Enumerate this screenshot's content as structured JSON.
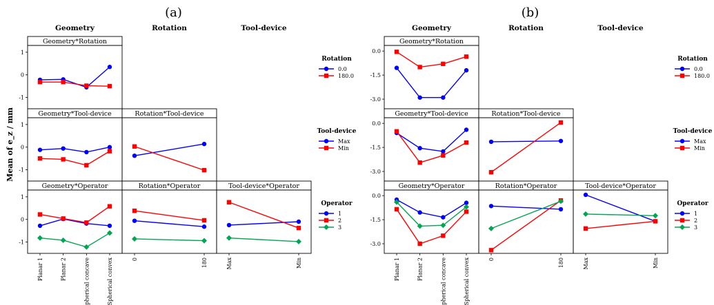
{
  "chart_data": [
    {
      "label": "(a)",
      "type": "interaction-line-matrix",
      "ylabel": "Mean of e_z / mm",
      "factors": [
        "Geometry",
        "Rotation",
        "Tool-device"
      ],
      "column_headers": [
        "Geometry",
        "Rotation",
        "Tool-device"
      ],
      "ylim": [
        -1.5,
        1.3
      ],
      "yticks": [
        "1",
        "0",
        "-1"
      ],
      "ytick_values": [
        1,
        0,
        -1
      ],
      "rows": [
        {
          "legend_title": "Rotation",
          "panels": [
            {
              "title": "Geometry*Rotation",
              "categories": [
                "Planar 1",
                "Planar 2",
                "Spherical concave",
                "Spherical convex"
              ],
              "series": [
                {
                  "name": "0.0",
                  "color": "#0000ff",
                  "marker": "circle",
                  "values": [
                    -0.22,
                    -0.2,
                    -0.55,
                    0.35
                  ]
                },
                {
                  "name": "180.0",
                  "color": "#ff0000",
                  "marker": "square",
                  "values": [
                    -0.32,
                    -0.32,
                    -0.48,
                    -0.5
                  ]
                }
              ]
            }
          ],
          "legend": [
            {
              "label": "0.0",
              "color": "#0000ff",
              "marker": "circle"
            },
            {
              "label": "180.0",
              "color": "#ff0000",
              "marker": "square"
            }
          ]
        },
        {
          "legend_title": "Tool-device",
          "panels": [
            {
              "title": "Geometry*Tool-device",
              "categories": [
                "Planar 1",
                "Planar 2",
                "Spherical concave",
                "Spherical convex"
              ],
              "series": [
                {
                  "name": "Max",
                  "color": "#0000ff",
                  "marker": "circle",
                  "values": [
                    -0.12,
                    -0.06,
                    -0.22,
                    0.0
                  ]
                },
                {
                  "name": "Min",
                  "color": "#ff0000",
                  "marker": "square",
                  "values": [
                    -0.5,
                    -0.54,
                    -0.8,
                    -0.18
                  ]
                }
              ]
            },
            {
              "title": "Rotation*Tool-device",
              "categories": [
                "0",
                "180"
              ],
              "series": [
                {
                  "name": "Max",
                  "color": "#0000ff",
                  "marker": "circle",
                  "values": [
                    -0.38,
                    0.14
                  ]
                },
                {
                  "name": "Min",
                  "color": "#ff0000",
                  "marker": "square",
                  "values": [
                    0.03,
                    -1.02
                  ]
                }
              ]
            }
          ],
          "legend": [
            {
              "label": "Max",
              "color": "#0000ff",
              "marker": "circle"
            },
            {
              "label": "Min",
              "color": "#ff0000",
              "marker": "square"
            }
          ]
        },
        {
          "legend_title": "Operator",
          "panels": [
            {
              "title": "Geometry*Operator",
              "categories": [
                "Planar 1",
                "Planar 2",
                "Spherical concave",
                "Spherical convex"
              ],
              "series": [
                {
                  "name": "1",
                  "color": "#0000ff",
                  "marker": "circle",
                  "values": [
                    -0.28,
                    0.02,
                    -0.18,
                    -0.28
                  ]
                },
                {
                  "name": "2",
                  "color": "#ff0000",
                  "marker": "square",
                  "values": [
                    0.22,
                    0.04,
                    -0.14,
                    0.58
                  ]
                },
                {
                  "name": "3",
                  "color": "#00a651",
                  "marker": "diamond",
                  "values": [
                    -0.82,
                    -0.92,
                    -1.22,
                    -0.6
                  ]
                }
              ]
            },
            {
              "title": "Rotation*Operator",
              "categories": [
                "0",
                "180"
              ],
              "series": [
                {
                  "name": "1",
                  "color": "#0000ff",
                  "marker": "circle",
                  "values": [
                    -0.06,
                    -0.32
                  ]
                },
                {
                  "name": "2",
                  "color": "#ff0000",
                  "marker": "square",
                  "values": [
                    0.38,
                    -0.04
                  ]
                },
                {
                  "name": "3",
                  "color": "#00a651",
                  "marker": "diamond",
                  "values": [
                    -0.86,
                    -0.94
                  ]
                }
              ]
            },
            {
              "title": "Tool-device*Operator",
              "categories": [
                "Max",
                "Min"
              ],
              "series": [
                {
                  "name": "1",
                  "color": "#0000ff",
                  "marker": "circle",
                  "values": [
                    -0.25,
                    -0.1
                  ]
                },
                {
                  "name": "2",
                  "color": "#ff0000",
                  "marker": "square",
                  "values": [
                    0.76,
                    -0.38
                  ]
                },
                {
                  "name": "3",
                  "color": "#00a651",
                  "marker": "diamond",
                  "values": [
                    -0.82,
                    -0.98
                  ]
                }
              ]
            }
          ],
          "legend": [
            {
              "label": "1",
              "color": "#0000ff",
              "marker": "circle"
            },
            {
              "label": "2",
              "color": "#ff0000",
              "marker": "square"
            },
            {
              "label": "3",
              "color": "#00a651",
              "marker": "diamond"
            }
          ]
        }
      ]
    },
    {
      "label": "(b)",
      "type": "interaction-line-matrix",
      "ylabel": "",
      "factors": [
        "Geometry",
        "Rotation",
        "Tool-device"
      ],
      "column_headers": [
        "Geometry",
        "Rotation",
        "Tool-device"
      ],
      "ylim": [
        -3.6,
        0.35
      ],
      "yticks": [
        "0.0",
        "-1.5",
        "-3.0"
      ],
      "ytick_values": [
        0,
        -1.5,
        -3.0
      ],
      "rows": [
        {
          "legend_title": "Rotation",
          "panels": [
            {
              "title": "Geometry*Rotation",
              "categories": [
                "Planar 1",
                "Planar 2",
                "Spherical concave",
                "Spherical convex"
              ],
              "series": [
                {
                  "name": "0.0",
                  "color": "#0000ff",
                  "marker": "circle",
                  "values": [
                    -1.05,
                    -2.9,
                    -2.9,
                    -1.2
                  ]
                },
                {
                  "name": "180.0",
                  "color": "#ff0000",
                  "marker": "square",
                  "values": [
                    -0.05,
                    -1.0,
                    -0.8,
                    -0.35
                  ]
                }
              ]
            }
          ],
          "legend": [
            {
              "label": "0.0",
              "color": "#0000ff",
              "marker": "circle"
            },
            {
              "label": "180.0",
              "color": "#ff0000",
              "marker": "square"
            }
          ]
        },
        {
          "legend_title": "Tool-device",
          "panels": [
            {
              "title": "Geometry*Tool-device",
              "categories": [
                "Planar 1",
                "Planar 2",
                "Spherical concave",
                "Spherical convex"
              ],
              "series": [
                {
                  "name": "Max",
                  "color": "#0000ff",
                  "marker": "circle",
                  "values": [
                    -0.6,
                    -1.55,
                    -1.75,
                    -0.4
                  ]
                },
                {
                  "name": "Min",
                  "color": "#ff0000",
                  "marker": "square",
                  "values": [
                    -0.5,
                    -2.45,
                    -2.0,
                    -1.2
                  ]
                }
              ]
            },
            {
              "title": "Rotation*Tool-device",
              "categories": [
                "0",
                "180"
              ],
              "series": [
                {
                  "name": "Max",
                  "color": "#0000ff",
                  "marker": "circle",
                  "values": [
                    -1.15,
                    -1.1
                  ]
                },
                {
                  "name": "Min",
                  "color": "#ff0000",
                  "marker": "square",
                  "values": [
                    -3.05,
                    0.05
                  ]
                }
              ]
            }
          ],
          "legend": [
            {
              "label": "Max",
              "color": "#0000ff",
              "marker": "circle"
            },
            {
              "label": "Min",
              "color": "#ff0000",
              "marker": "square"
            }
          ]
        },
        {
          "legend_title": "Operator",
          "panels": [
            {
              "title": "Geometry*Operator",
              "categories": [
                "Planar 1",
                "Planar 2",
                "Spherical concave",
                "Spherical convex"
              ],
              "series": [
                {
                  "name": "1",
                  "color": "#0000ff",
                  "marker": "circle",
                  "values": [
                    -0.25,
                    -1.05,
                    -1.35,
                    -0.45
                  ]
                },
                {
                  "name": "2",
                  "color": "#ff0000",
                  "marker": "square",
                  "values": [
                    -0.85,
                    -3.0,
                    -2.5,
                    -1.0
                  ]
                },
                {
                  "name": "3",
                  "color": "#00a651",
                  "marker": "diamond",
                  "values": [
                    -0.4,
                    -1.9,
                    -1.85,
                    -0.7
                  ]
                }
              ]
            },
            {
              "title": "Rotation*Operator",
              "categories": [
                "0",
                "180"
              ],
              "series": [
                {
                  "name": "1",
                  "color": "#0000ff",
                  "marker": "circle",
                  "values": [
                    -0.65,
                    -0.85
                  ]
                },
                {
                  "name": "2",
                  "color": "#ff0000",
                  "marker": "square",
                  "values": [
                    -3.4,
                    -0.3
                  ]
                },
                {
                  "name": "3",
                  "color": "#00a651",
                  "marker": "diamond",
                  "values": [
                    -2.05,
                    -0.35
                  ]
                }
              ]
            },
            {
              "title": "Tool-device*Operator",
              "categories": [
                "Max",
                "Min"
              ],
              "series": [
                {
                  "name": "1",
                  "color": "#0000ff",
                  "marker": "circle",
                  "values": [
                    0.05,
                    -1.6
                  ]
                },
                {
                  "name": "2",
                  "color": "#ff0000",
                  "marker": "square",
                  "values": [
                    -2.05,
                    -1.6
                  ]
                },
                {
                  "name": "3",
                  "color": "#00a651",
                  "marker": "diamond",
                  "values": [
                    -1.15,
                    -1.25
                  ]
                }
              ]
            }
          ],
          "legend": [
            {
              "label": "1",
              "color": "#0000ff",
              "marker": "circle"
            },
            {
              "label": "2",
              "color": "#ff0000",
              "marker": "square"
            },
            {
              "label": "3",
              "color": "#00a651",
              "marker": "diamond"
            }
          ]
        }
      ]
    }
  ]
}
